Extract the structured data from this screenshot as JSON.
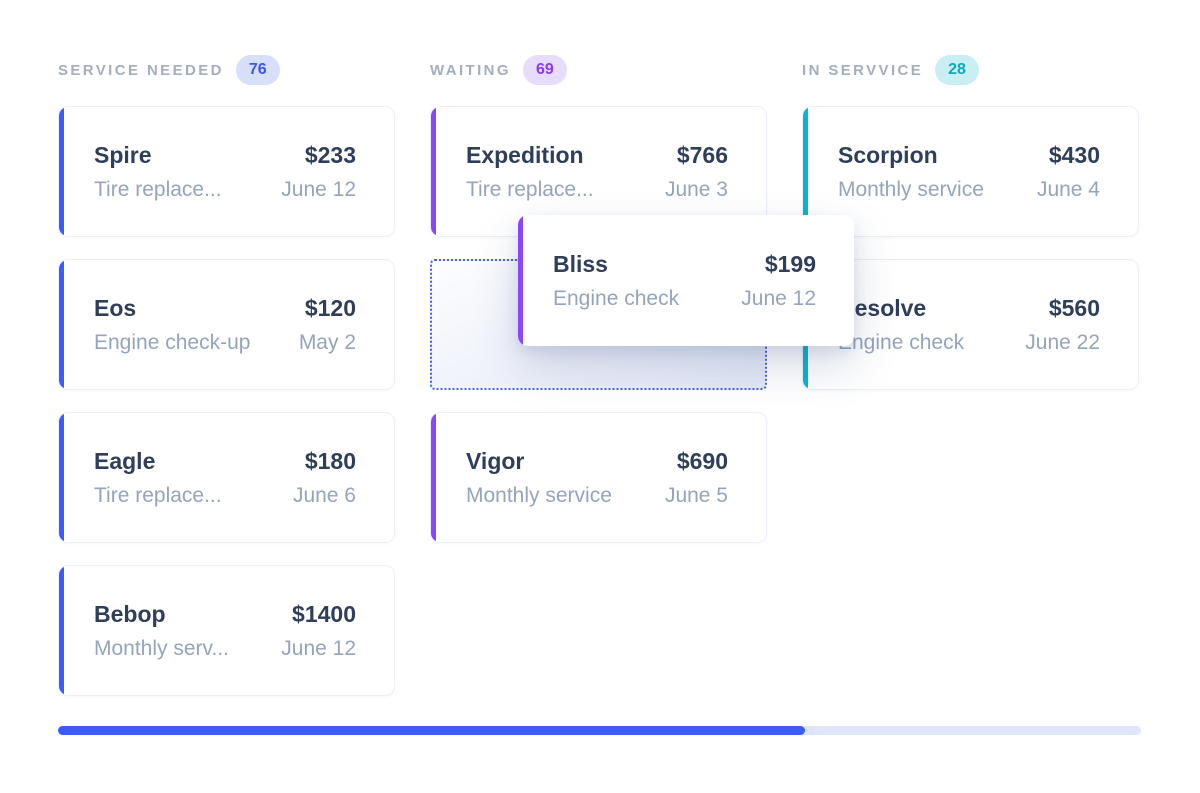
{
  "board": {
    "columns": [
      {
        "id": "service-needed",
        "label": "SERVICE NEEDED",
        "count": "76",
        "accent_color": "#3b5bfd",
        "badge_bg": "#d7dffb",
        "badge_text_color": "#3c56e8",
        "cards": [
          {
            "title": "Spire",
            "price": "$233",
            "service": "Tire replace...",
            "date": "June 12"
          },
          {
            "title": "Eos",
            "price": "$120",
            "service": "Engine check-up",
            "date": "May 2"
          },
          {
            "title": "Eagle",
            "price": "$180",
            "service": "Tire replace...",
            "date": "June 6"
          },
          {
            "title": "Bebop",
            "price": "$1400",
            "service": "Monthly serv...",
            "date": "June 12"
          }
        ]
      },
      {
        "id": "waiting",
        "label": "WAITING",
        "count": "69",
        "accent_color": "#8b45fb",
        "badge_bg": "#e7dcfb",
        "badge_text_color": "#8b3de8",
        "cards": [
          {
            "title": "Expedition",
            "price": "$766",
            "service": "Tire replace...",
            "date": "June 3"
          },
          {
            "title": "Vigor",
            "price": "$690",
            "service": "Monthly service",
            "date": "June 5"
          }
        ],
        "drop_placeholder": {
          "present": true,
          "border_color": "#4a63d8"
        }
      },
      {
        "id": "in-service",
        "label": "IN SERVVICE",
        "count": "28",
        "accent_color": "#07b7cf",
        "badge_bg": "#c9eff4",
        "badge_text_color": "#0fa7bc",
        "cards": [
          {
            "title": "Scorpion",
            "price": "$430",
            "service": "Monthly service",
            "date": "June 4"
          },
          {
            "title": "Resolve",
            "price": "$560",
            "service": "Engine check",
            "date": "June 22"
          }
        ]
      }
    ],
    "dragged_card": {
      "title": "Bliss",
      "price": "$199",
      "service": "Engine check",
      "date": "June 12",
      "accent_color": "#8b45fb"
    },
    "progress": {
      "percent": 69,
      "fill_color": "#3b5bfd",
      "track_color": "#dfe6fb"
    }
  }
}
